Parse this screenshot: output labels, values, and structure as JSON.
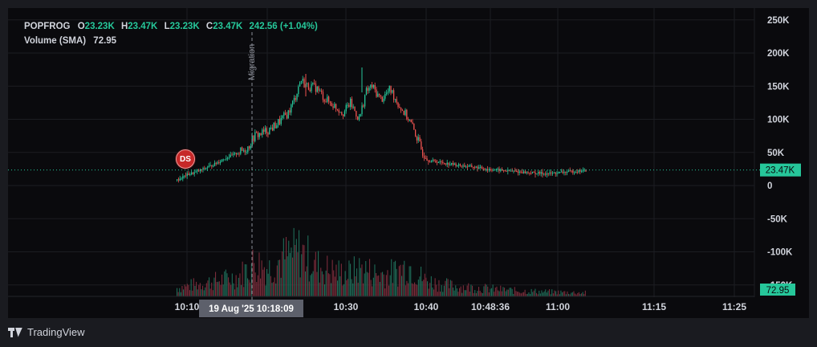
{
  "legend": {
    "symbol": "POPFROG",
    "open_label": "O",
    "open": "23.23K",
    "high_label": "H",
    "high": "23.47K",
    "low_label": "L",
    "low": "23.23K",
    "close_label": "C",
    "close": "23.47K",
    "change": "242.56 (+1.04%)",
    "volume_label": "Volume (SMA)",
    "volume_value": "72.95"
  },
  "annotations": {
    "migration_label": "Migration",
    "marker_label": "DS"
  },
  "price_tag": "23.47K",
  "volume_tag": "72.95",
  "crosshair_time": "19 Aug '25   10:18:09",
  "footer": {
    "brand": "TradingView"
  },
  "colors": {
    "up": "#26c79a",
    "down": "#ef5350",
    "background": "#0a0a0d",
    "text": "#d1d4dc"
  },
  "chart_data": {
    "type": "candlestick",
    "y_axis_ticks": [
      "250K",
      "200K",
      "150K",
      "100K",
      "50K",
      "0",
      "-50K",
      "-100K",
      "-150K"
    ],
    "y_tick_values": [
      250000,
      200000,
      150000,
      100000,
      50000,
      0,
      -50000,
      -100000,
      -150000
    ],
    "x_axis_ticks": [
      "10:10",
      "10:18:09",
      "10:30",
      "10:40",
      "10:48:36",
      "11:00",
      "11:15",
      "11:25"
    ],
    "last_price": 23470,
    "price_path": [
      [
        0,
        8000
      ],
      [
        0.03,
        16000
      ],
      [
        0.06,
        20000
      ],
      [
        0.09,
        26000
      ],
      [
        0.12,
        32000
      ],
      [
        0.15,
        40000
      ],
      [
        0.18,
        46000
      ],
      [
        0.21,
        52000
      ],
      [
        0.23,
        58000
      ],
      [
        0.25,
        75000
      ],
      [
        0.28,
        80000
      ],
      [
        0.31,
        88000
      ],
      [
        0.34,
        100000
      ],
      [
        0.36,
        110000
      ],
      [
        0.38,
        130000
      ],
      [
        0.4,
        160000
      ],
      [
        0.42,
        150000
      ],
      [
        0.45,
        148000
      ],
      [
        0.48,
        130000
      ],
      [
        0.51,
        120000
      ],
      [
        0.54,
        110000
      ],
      [
        0.56,
        125000
      ],
      [
        0.59,
        100000
      ],
      [
        0.61,
        140000
      ],
      [
        0.63,
        150000
      ],
      [
        0.66,
        130000
      ],
      [
        0.69,
        145000
      ],
      [
        0.72,
        120000
      ],
      [
        0.75,
        100000
      ],
      [
        0.77,
        80000
      ],
      [
        0.79,
        55000
      ],
      [
        0.81,
        38000
      ],
      [
        0.84,
        36000
      ],
      [
        0.88,
        33000
      ],
      [
        0.92,
        30000
      ],
      [
        0.96,
        28000
      ],
      [
        1.0,
        25000
      ],
      [
        1.05,
        23000
      ],
      [
        1.1,
        21000
      ],
      [
        1.15,
        19000
      ],
      [
        1.2,
        18000
      ],
      [
        1.25,
        20000
      ],
      [
        1.3,
        22000
      ],
      [
        1.35,
        23470
      ]
    ],
    "volume_profile": [
      [
        0,
        15
      ],
      [
        0.1,
        25
      ],
      [
        0.2,
        35
      ],
      [
        0.25,
        60
      ],
      [
        0.3,
        50
      ],
      [
        0.35,
        70
      ],
      [
        0.4,
        80
      ],
      [
        0.45,
        55
      ],
      [
        0.5,
        45
      ],
      [
        0.55,
        40
      ],
      [
        0.6,
        50
      ],
      [
        0.65,
        38
      ],
      [
        0.7,
        42
      ],
      [
        0.75,
        55
      ],
      [
        0.8,
        30
      ],
      [
        0.85,
        22
      ],
      [
        0.9,
        18
      ],
      [
        1.0,
        14
      ],
      [
        1.1,
        10
      ],
      [
        1.2,
        8
      ],
      [
        1.35,
        6
      ]
    ]
  }
}
